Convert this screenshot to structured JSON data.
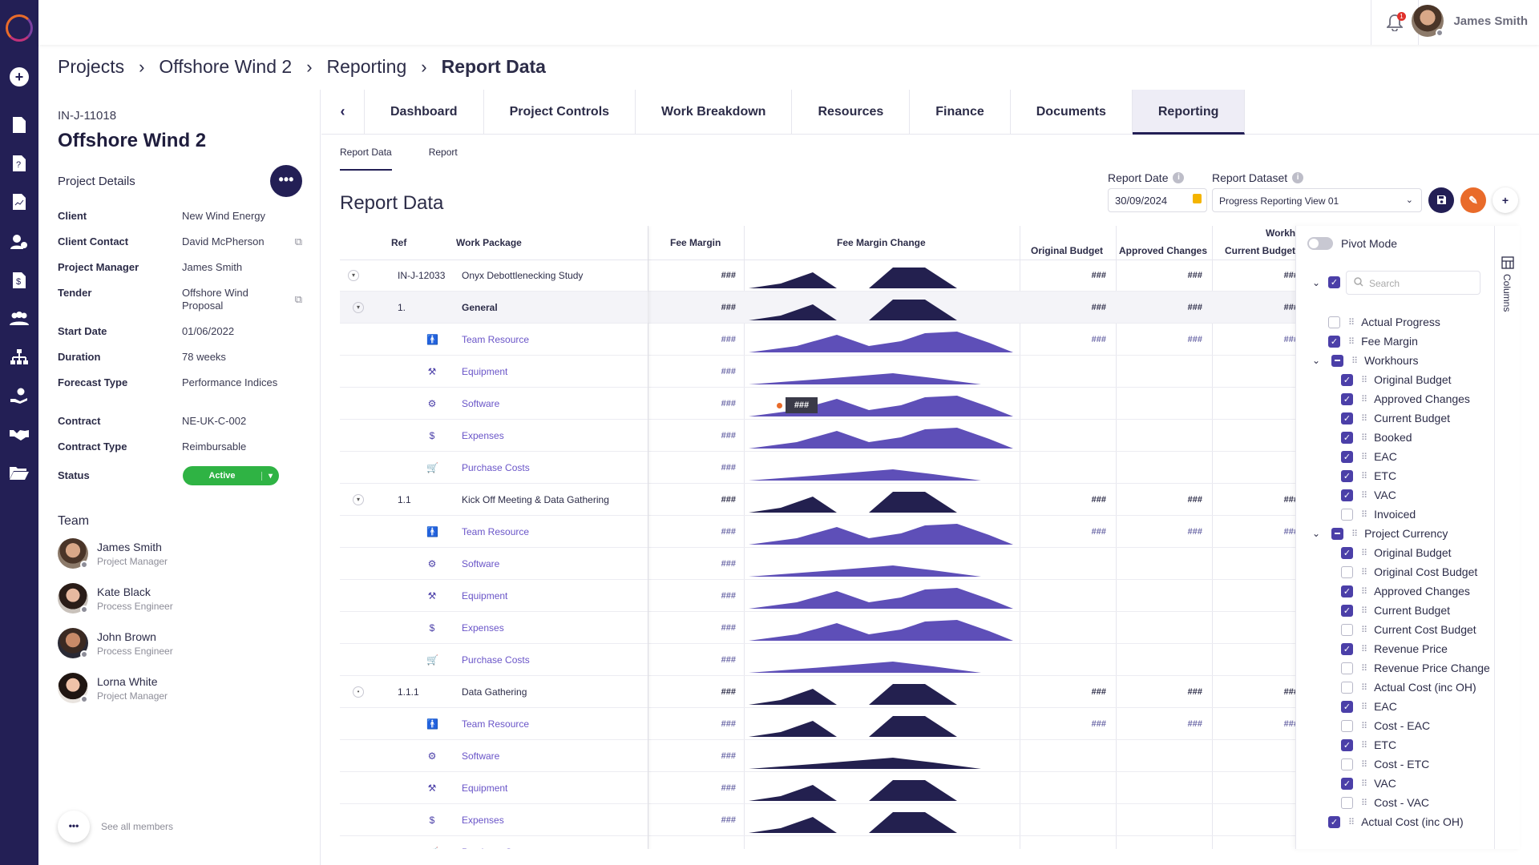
{
  "user": {
    "name": "James Smith",
    "notifications": "1"
  },
  "breadcrumb": [
    {
      "label": "Projects"
    },
    {
      "label": "Offshore Wind 2"
    },
    {
      "label": "Reporting"
    },
    {
      "label": "Report Data"
    }
  ],
  "breadcrumb_sep": "›",
  "project": {
    "id": "IN-J-11018",
    "title": "Offshore Wind 2",
    "details_heading": "Project Details",
    "more": "•••",
    "details": [
      {
        "key": "Client",
        "value": "New Wind Energy"
      },
      {
        "key": "Client Contact",
        "value": "David McPherson",
        "link": true
      },
      {
        "key": "Project Manager",
        "value": "James Smith"
      },
      {
        "key": "Tender",
        "value": "Offshore Wind Proposal",
        "link": true
      },
      {
        "key": "Start Date",
        "value": "01/06/2022"
      },
      {
        "key": "Duration",
        "value": "78 weeks"
      },
      {
        "key": "Forecast Type",
        "value": "Performance Indices"
      },
      {
        "key": "Contract",
        "value": "NE-UK-C-002"
      },
      {
        "key": "Contract Type",
        "value": "Reimbursable"
      },
      {
        "key": "Status",
        "value": "Active"
      }
    ],
    "team_heading": "Team",
    "team": [
      {
        "name": "James Smith",
        "role": "Project Manager"
      },
      {
        "name": "Kate Black",
        "role": "Process Engineer"
      },
      {
        "name": "John Brown",
        "role": "Process Engineer"
      },
      {
        "name": "Lorna White",
        "role": "Project Manager"
      }
    ],
    "see_all": "See all members"
  },
  "tabs": [
    "Dashboard",
    "Project Controls",
    "Work Breakdown",
    "Resources",
    "Finance",
    "Documents",
    "Reporting"
  ],
  "active_tab": "Reporting",
  "subtabs": [
    "Report Data",
    "Report"
  ],
  "page_title": "Report Data",
  "report_date": {
    "label": "Report Date",
    "value": "30/09/2024"
  },
  "report_dataset": {
    "label": "Report Dataset",
    "value": "Progress Reporting View 01"
  },
  "grid": {
    "headers": {
      "ref": "Ref",
      "wp": "Work Package",
      "fee": "Fee Margin",
      "change": "Fee Margin Change",
      "group": "Workh",
      "ob": "Original Budget",
      "ac": "Approved Changes",
      "cb": "Current Budget"
    },
    "tooltip": "###",
    "rows": [
      {
        "ref": "IN-J-12033",
        "wp": "Onyx Debottlenecking Study",
        "fee": "###",
        "ob": "###",
        "ac": "###",
        "cb": "###",
        "level": 0,
        "toggle": "▾",
        "bold": false
      },
      {
        "ref": "1.",
        "wp": "General",
        "fee": "###",
        "ob": "###",
        "ac": "###",
        "cb": "###",
        "level": 1,
        "toggle": "▾",
        "bold": true
      },
      {
        "ref": "",
        "wp": "Team Resource",
        "fee": "###",
        "ob": "###",
        "ac": "###",
        "cb": "###",
        "level": 2,
        "icon": "person"
      },
      {
        "ref": "",
        "wp": "Equipment",
        "fee": "###",
        "level": 2,
        "icon": "tool"
      },
      {
        "ref": "",
        "wp": "Software",
        "fee": "###",
        "level": 2,
        "icon": "gear"
      },
      {
        "ref": "",
        "wp": "Expenses",
        "fee": "###",
        "level": 2,
        "icon": "dollar"
      },
      {
        "ref": "",
        "wp": "Purchase Costs",
        "fee": "###",
        "level": 2,
        "icon": "cart"
      },
      {
        "ref": "1.1",
        "wp": "Kick Off Meeting & Data Gathering",
        "fee": "###",
        "ob": "###",
        "ac": "###",
        "cb": "###",
        "level": 1,
        "toggle": "▾",
        "bold": false
      },
      {
        "ref": "",
        "wp": "Team Resource",
        "fee": "###",
        "ob": "###",
        "ac": "###",
        "cb": "###",
        "level": 2,
        "icon": "person"
      },
      {
        "ref": "",
        "wp": "Software",
        "fee": "###",
        "level": 2,
        "icon": "gear"
      },
      {
        "ref": "",
        "wp": "Equipment",
        "fee": "###",
        "level": 2,
        "icon": "tool"
      },
      {
        "ref": "",
        "wp": "Expenses",
        "fee": "###",
        "level": 2,
        "icon": "dollar"
      },
      {
        "ref": "",
        "wp": "Purchase Costs",
        "fee": "###",
        "level": 2,
        "icon": "cart"
      },
      {
        "ref": "1.1.1",
        "wp": "Data Gathering",
        "fee": "###",
        "ob": "###",
        "ac": "###",
        "cb": "###",
        "level": 1,
        "toggle": "•",
        "bold": false
      },
      {
        "ref": "",
        "wp": "Team Resource",
        "fee": "###",
        "ob": "###",
        "ac": "###",
        "cb": "###",
        "level": 2,
        "icon": "person"
      },
      {
        "ref": "",
        "wp": "Software",
        "fee": "###",
        "level": 2,
        "icon": "gear"
      },
      {
        "ref": "",
        "wp": "Equipment",
        "fee": "###",
        "level": 2,
        "icon": "tool"
      },
      {
        "ref": "",
        "wp": "Expenses",
        "fee": "###",
        "level": 2,
        "icon": "dollar"
      },
      {
        "ref": "",
        "wp": "Purchase Costs",
        "fee": "",
        "level": 2,
        "icon": "cart"
      }
    ]
  },
  "columns_panel": {
    "pivot_label": "Pivot Mode",
    "search_placeholder": "Search",
    "side_label": "Columns",
    "items": [
      {
        "label": "Actual Progress",
        "state": "off",
        "indent": 0
      },
      {
        "label": "Fee Margin",
        "state": "on",
        "indent": 0
      },
      {
        "label": "Workhours",
        "state": "mix",
        "indent": 0,
        "group": true
      },
      {
        "label": "Original Budget",
        "state": "on",
        "indent": 1
      },
      {
        "label": "Approved Changes",
        "state": "on",
        "indent": 1
      },
      {
        "label": "Current Budget",
        "state": "on",
        "indent": 1
      },
      {
        "label": "Booked",
        "state": "on",
        "indent": 1
      },
      {
        "label": "EAC",
        "state": "on",
        "indent": 1
      },
      {
        "label": "ETC",
        "state": "on",
        "indent": 1
      },
      {
        "label": "VAC",
        "state": "on",
        "indent": 1
      },
      {
        "label": "Invoiced",
        "state": "off",
        "indent": 1
      },
      {
        "label": "Project Currency",
        "state": "mix",
        "indent": 0,
        "group": true
      },
      {
        "label": "Original Budget",
        "state": "on",
        "indent": 1
      },
      {
        "label": "Original Cost Budget",
        "state": "off",
        "indent": 1
      },
      {
        "label": "Approved Changes",
        "state": "on",
        "indent": 1
      },
      {
        "label": "Current Budget",
        "state": "on",
        "indent": 1
      },
      {
        "label": "Current Cost Budget",
        "state": "off",
        "indent": 1
      },
      {
        "label": "Revenue Price",
        "state": "on",
        "indent": 1
      },
      {
        "label": "Revenue Price Change",
        "state": "off",
        "indent": 1
      },
      {
        "label": "Actual Cost (inc OH)",
        "state": "off",
        "indent": 1
      },
      {
        "label": "EAC",
        "state": "on",
        "indent": 1
      },
      {
        "label": "Cost - EAC",
        "state": "off",
        "indent": 1
      },
      {
        "label": "ETC",
        "state": "on",
        "indent": 1
      },
      {
        "label": "Cost - ETC",
        "state": "off",
        "indent": 1
      },
      {
        "label": "VAC",
        "state": "on",
        "indent": 1
      },
      {
        "label": "Cost - VAC",
        "state": "off",
        "indent": 1
      },
      {
        "label": "Actual Cost (inc OH)",
        "state": "on",
        "indent": 0
      }
    ]
  },
  "colors": {
    "navy": "#231f55",
    "accent": "#e96b2a",
    "purple": "#5e4fb8",
    "success": "#2fb344"
  }
}
